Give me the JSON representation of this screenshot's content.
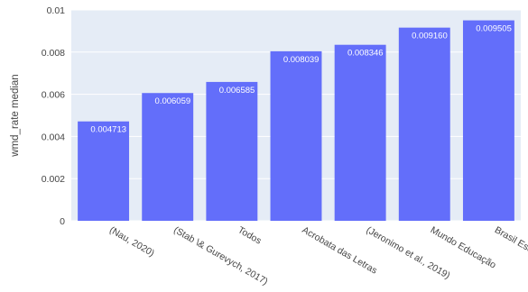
{
  "colors": {
    "plot_background": "#e5ecf6",
    "gridline": "#ffffff",
    "bar": "#636efa",
    "bar_text": "#ffffff",
    "tick_text": "#444444"
  },
  "chart_data": {
    "type": "bar",
    "categories": [
      "(Nau, 2020)",
      "(Stab \\& Gurevych, 2017)",
      "Todos",
      "Acrobata das Letras",
      "(Jeronimo et al., 2019)",
      "Mundo Educação",
      "Brasil Escola"
    ],
    "values": [
      0.004713,
      0.006059,
      0.006585,
      0.008039,
      0.008346,
      0.00916,
      0.009505
    ],
    "value_labels": [
      "0.004713",
      "0.006059",
      "0.006585",
      "0.008039",
      "0.008346",
      "0.009160",
      "0.009505"
    ],
    "xlabel": "",
    "ylabel": "wmd_rate median",
    "ylim": [
      0,
      0.01
    ],
    "yticks": [
      0,
      0.002,
      0.004,
      0.006,
      0.008,
      0.01
    ],
    "ytick_labels": [
      "0",
      "0.002",
      "0.004",
      "0.006",
      "0.008",
      "0.01"
    ],
    "grid": true,
    "legend": "none"
  }
}
